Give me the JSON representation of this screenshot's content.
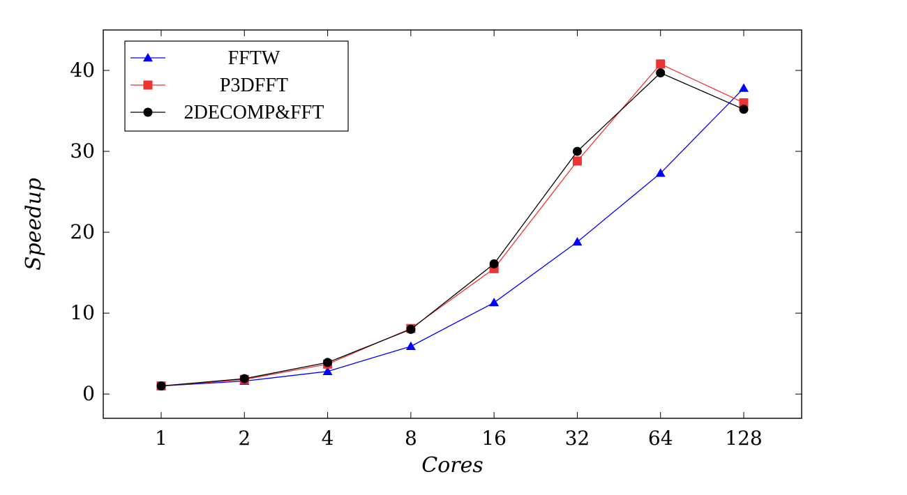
{
  "chart_data": {
    "type": "line",
    "title": "",
    "xlabel": "Cores",
    "ylabel": "Speedup",
    "categories": [
      "1",
      "2",
      "4",
      "8",
      "16",
      "32",
      "64",
      "128"
    ],
    "ylim": [
      -3,
      45
    ],
    "yticks": [
      0,
      10,
      20,
      30,
      40
    ],
    "grid": false,
    "legend_position": "top-left",
    "series": [
      {
        "name": "FFTW",
        "color": "#0000ff",
        "marker": "triangle",
        "values": [
          1.0,
          1.6,
          2.8,
          5.9,
          11.3,
          18.8,
          27.3,
          37.8
        ]
      },
      {
        "name": "P3DFFT",
        "color": "#ee3333",
        "marker": "square",
        "values": [
          1.0,
          1.8,
          3.7,
          8.1,
          15.5,
          28.8,
          40.8,
          36.0
        ]
      },
      {
        "name": "2DECOMP&FFT",
        "color": "#000000",
        "marker": "circle",
        "values": [
          1.0,
          1.9,
          3.9,
          8.0,
          16.1,
          30.0,
          39.7,
          35.2
        ]
      }
    ]
  }
}
